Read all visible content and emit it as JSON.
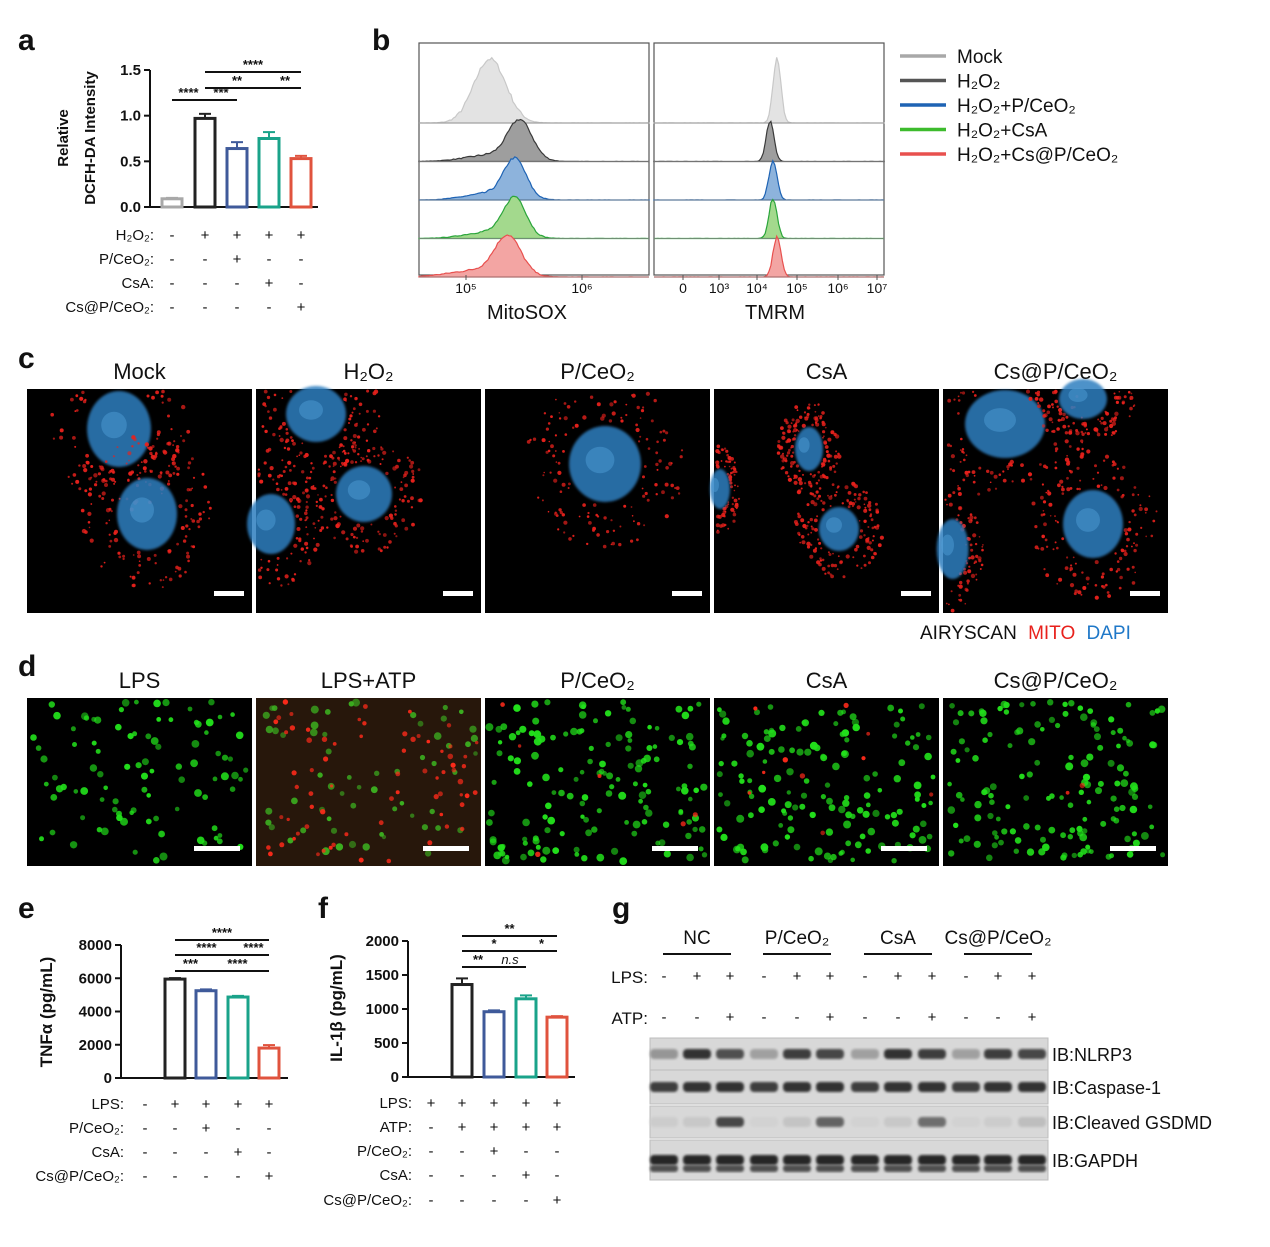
{
  "panel_letters": [
    "a",
    "b",
    "c",
    "d",
    "e",
    "f",
    "g"
  ],
  "colors": {
    "mock": "#a8a8a8",
    "h2o2": "#222222",
    "pceo2": "#3f5a9a",
    "csa": "#1aa38a",
    "cspceo2": "#e0533e",
    "mito": "#e8211c",
    "dapi": "#1f78c8",
    "dead": "#ff2a1a",
    "live": "#22e01b"
  },
  "panel_a": {
    "ylabel_line1": "Relative",
    "ylabel_line2": "DCFH-DA Intensity",
    "row_labels": [
      "H₂O₂:",
      "P/CeO₂:",
      "CsA:",
      "Cs@P/CeO₂:"
    ],
    "signs": [
      [
        "-",
        "+",
        "+",
        "+",
        "+"
      ],
      [
        "-",
        "-",
        "+",
        "-",
        "-"
      ],
      [
        "-",
        "-",
        "-",
        "+",
        "-"
      ],
      [
        "-",
        "-",
        "-",
        "-",
        "+"
      ]
    ],
    "sig": [
      "****",
      "***",
      "****",
      "**",
      "**"
    ]
  },
  "panel_b": {
    "legend": [
      "Mock",
      "H₂O₂",
      "H₂O₂+P/CeO₂",
      "H₂O₂+CsA",
      "H₂O₂+Cs@P/CeO₂"
    ],
    "left_xlabel": "MitoSOX",
    "right_xlabel": "TMRM",
    "left_ticks": [
      "10⁵",
      "10⁶"
    ],
    "right_ticks": [
      "0",
      "10³",
      "10⁴",
      "10⁵",
      "10⁶",
      "10⁷"
    ]
  },
  "panel_c": {
    "titles": [
      "Mock",
      "H₂O₂",
      "P/CeO₂",
      "CsA",
      "Cs@P/CeO₂"
    ],
    "legend_airyscan": "AIRYSCAN",
    "legend_mito": "MITO",
    "legend_dapi": "DAPI"
  },
  "panel_d": {
    "titles": [
      "LPS",
      "LPS+ATP",
      "P/CeO₂",
      "CsA",
      "Cs@P/CeO₂"
    ]
  },
  "panel_e": {
    "ylabel": "TNFα (pg/mL)",
    "row_labels": [
      "LPS:",
      "P/CeO₂:",
      "CsA:",
      "Cs@P/CeO₂:"
    ],
    "signs": [
      [
        "-",
        "+",
        "+",
        "+",
        "+"
      ],
      [
        "-",
        "-",
        "+",
        "-",
        "-"
      ],
      [
        "-",
        "-",
        "-",
        "+",
        "-"
      ],
      [
        "-",
        "-",
        "-",
        "-",
        "+"
      ]
    ],
    "sig": [
      "****",
      "****",
      "****",
      "***",
      "****"
    ]
  },
  "panel_f": {
    "ylabel": "IL-1β (pg/mL)",
    "row_labels": [
      "LPS:",
      "ATP:",
      "P/CeO₂:",
      "CsA:",
      "Cs@P/CeO₂:"
    ],
    "signs": [
      [
        "+",
        "+",
        "+",
        "+",
        "+"
      ],
      [
        "-",
        "+",
        "+",
        "+",
        "+"
      ],
      [
        "-",
        "-",
        "+",
        "-",
        "-"
      ],
      [
        "-",
        "-",
        "-",
        "+",
        "-"
      ],
      [
        "-",
        "-",
        "-",
        "-",
        "+"
      ]
    ],
    "sig": [
      "**",
      "*",
      "*",
      "**",
      "n.s"
    ]
  },
  "panel_g": {
    "groups": [
      "NC",
      "P/CeO₂",
      "CsA",
      "Cs@P/CeO₂"
    ],
    "row_labels": [
      "LPS:",
      "ATP:"
    ],
    "lps": [
      "-",
      "+",
      "+",
      "-",
      "+",
      "+",
      "-",
      "+",
      "+",
      "-",
      "+",
      "+"
    ],
    "atp": [
      "-",
      "-",
      "+",
      "-",
      "-",
      "+",
      "-",
      "-",
      "+",
      "-",
      "-",
      "+"
    ],
    "blots": [
      "IB:NLRP3",
      "IB:Caspase-1",
      "IB:Cleaved GSDMD",
      "IB:GAPDH"
    ],
    "band_intensity": {
      "nlrp3": [
        0.35,
        0.85,
        0.7,
        0.3,
        0.8,
        0.75,
        0.3,
        0.85,
        0.8,
        0.3,
        0.8,
        0.75
      ],
      "caspase": [
        0.8,
        0.85,
        0.85,
        0.8,
        0.85,
        0.85,
        0.8,
        0.85,
        0.85,
        0.8,
        0.85,
        0.85
      ],
      "gsdmd": [
        0.08,
        0.1,
        0.75,
        0.05,
        0.12,
        0.6,
        0.05,
        0.1,
        0.55,
        0.05,
        0.08,
        0.15
      ],
      "gapdh": [
        0.9,
        0.9,
        0.9,
        0.9,
        0.9,
        0.9,
        0.9,
        0.9,
        0.9,
        0.9,
        0.9,
        0.9
      ]
    }
  },
  "chart_data": [
    {
      "type": "bar",
      "panel": "a",
      "categories": [
        "Mock",
        "H₂O₂",
        "H₂O₂+P/CeO₂",
        "H₂O₂+CsA",
        "H₂O₂+Cs@P/CeO₂"
      ],
      "values": [
        0.09,
        0.97,
        0.64,
        0.75,
        0.53
      ],
      "errors": [
        0.01,
        0.05,
        0.07,
        0.07,
        0.03
      ],
      "ylim": [
        0,
        1.5
      ],
      "yticks": [
        0.0,
        0.5,
        1.0,
        1.5
      ],
      "ytick_labels": [
        "0.0",
        "0.5",
        "1.0",
        "1.5"
      ],
      "ylabel": "Relative DCFH-DA Intensity"
    },
    {
      "type": "bar",
      "panel": "e",
      "categories": [
        "Mock",
        "LPS",
        "LPS+P/CeO₂",
        "LPS+CsA",
        "LPS+Cs@P/CeO₂"
      ],
      "values": [
        0,
        5950,
        5250,
        4870,
        1800
      ],
      "errors": [
        0,
        60,
        80,
        70,
        180
      ],
      "ylim": [
        0,
        8000
      ],
      "yticks": [
        0,
        2000,
        4000,
        6000,
        8000
      ],
      "ytick_labels": [
        "0",
        "2000",
        "4000",
        "6000",
        "8000"
      ],
      "ylabel": "TNFα (pg/mL)"
    },
    {
      "type": "bar",
      "panel": "f",
      "categories": [
        "LPS",
        "LPS+ATP",
        "LPS+ATP+P/CeO₂",
        "LPS+ATP+CsA",
        "LPS+ATP+Cs@P/CeO₂"
      ],
      "values": [
        0,
        1360,
        960,
        1150,
        880
      ],
      "errors": [
        0,
        90,
        20,
        50,
        15
      ],
      "ylim": [
        0,
        2000
      ],
      "yticks": [
        0,
        500,
        1000,
        1500,
        2000
      ],
      "ytick_labels": [
        "0",
        "500",
        "1000",
        "1500",
        "2000"
      ],
      "ylabel": "IL-1β (pg/mL)"
    }
  ]
}
